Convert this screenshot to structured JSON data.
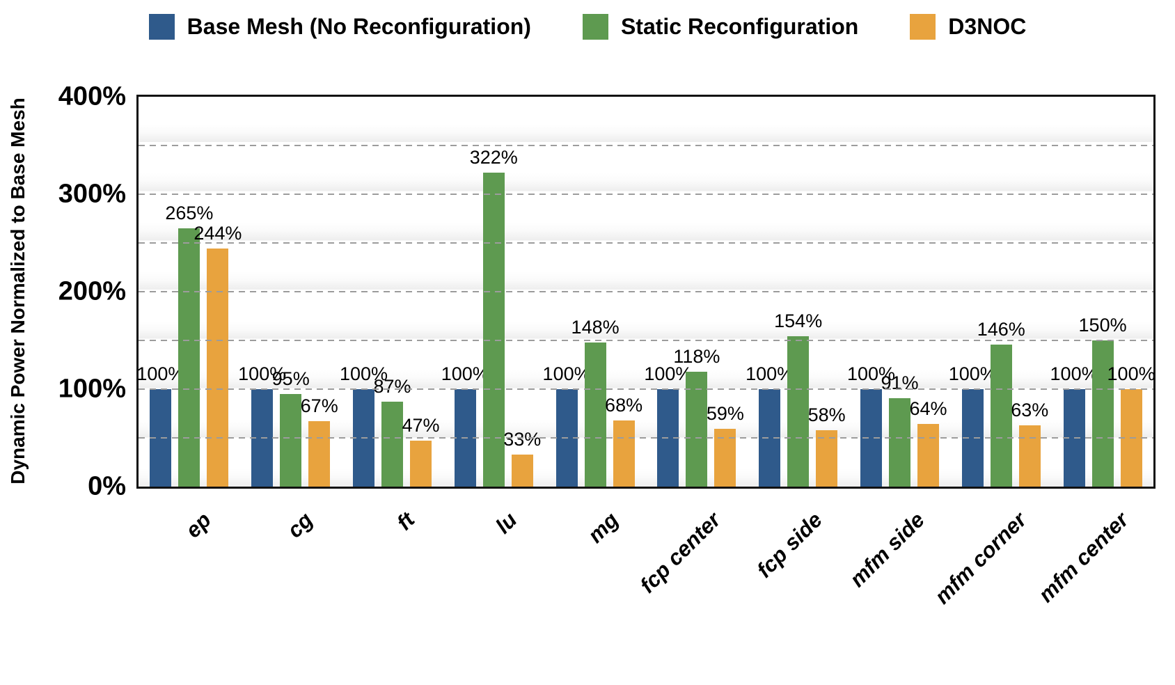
{
  "chart_data": {
    "type": "bar",
    "title": "",
    "xlabel": "",
    "ylabel": "Dynamic Power Normalized to Base Mesh",
    "ylim": [
      0,
      400
    ],
    "yticks": [
      0,
      100,
      200,
      300,
      400
    ],
    "ytick_labels": [
      "0%",
      "100%",
      "200%",
      "300%",
      "400%"
    ],
    "gridlines": [
      50,
      100,
      150,
      200,
      250,
      300,
      350
    ],
    "grid_style": "horizontal dashed",
    "legend_position": "top",
    "value_suffix": "%",
    "categories": [
      "ep",
      "cg",
      "ft",
      "lu",
      "mg",
      "fcp center",
      "fcp side",
      "mfm side",
      "mfm corner",
      "mfm center"
    ],
    "series": [
      {
        "name": "Base Mesh (No Reconfiguration)",
        "color": "#2F5A8B",
        "values": [
          100,
          100,
          100,
          100,
          100,
          100,
          100,
          100,
          100,
          100
        ]
      },
      {
        "name": "Static Reconfiguration",
        "color": "#5E9A50",
        "values": [
          265,
          95,
          87,
          322,
          148,
          118,
          154,
          91,
          146,
          150
        ]
      },
      {
        "name": "D3NOC",
        "color": "#E8A33E",
        "values": [
          244,
          67,
          47,
          33,
          68,
          59,
          58,
          64,
          63,
          100
        ]
      }
    ],
    "frame_color": "#111111",
    "gridline_color": "#9c9c9c"
  }
}
